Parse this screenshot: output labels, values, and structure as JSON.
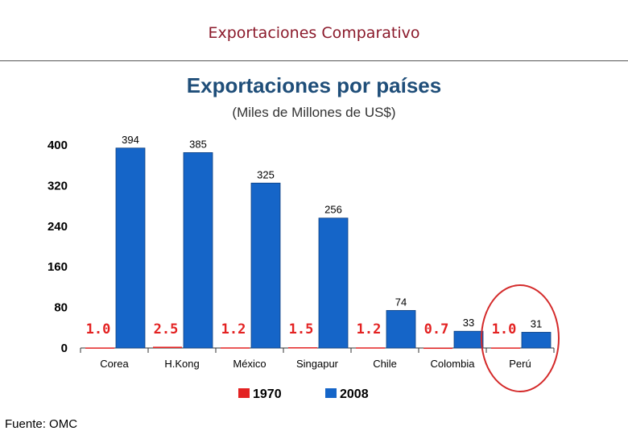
{
  "header": {
    "title": "Exportaciones Comparativo"
  },
  "footer": {
    "source": "Fuente: OMC"
  },
  "colors": {
    "series_1970": "#e32222",
    "series_2008": "#1565c8",
    "highlight_circle": "#d42a2a",
    "title": "#8b1a2b",
    "chart_title": "#1f4e79"
  },
  "chart_data": {
    "type": "bar",
    "title": "Exportaciones por países",
    "subtitle": "(Miles de Millones de US$)",
    "xlabel": "",
    "ylabel": "",
    "ylim": [
      0,
      400
    ],
    "yticks": [
      0,
      80,
      160,
      240,
      320,
      400
    ],
    "grid": false,
    "legend_position": "bottom",
    "categories": [
      "Corea",
      "H.Kong",
      "México",
      "Singapur",
      "Chile",
      "Colombia",
      "Perú"
    ],
    "series": [
      {
        "name": "1970",
        "values": [
          1.0,
          2.5,
          1.2,
          1.5,
          1.2,
          0.7,
          1.0
        ],
        "labels": [
          "1.0",
          "2.5",
          "1.2",
          "1.5",
          "1.2",
          "0.7",
          "1.0"
        ]
      },
      {
        "name": "2008",
        "values": [
          394,
          385,
          325,
          256,
          74,
          33,
          31
        ],
        "labels": [
          "394",
          "385",
          "325",
          "256",
          "74",
          "33",
          "31"
        ]
      }
    ],
    "highlighted_category": "Perú"
  }
}
